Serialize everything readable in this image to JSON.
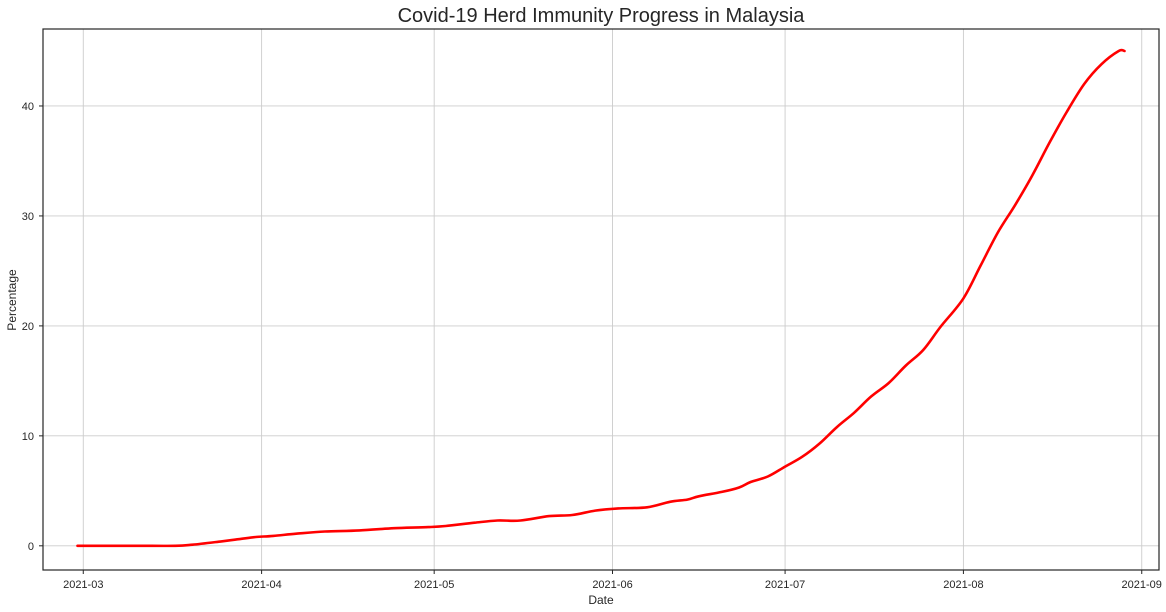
{
  "chart_data": {
    "type": "line",
    "title": "Covid-19 Herd Immunity Progress in Malaysia",
    "xlabel": "Date",
    "ylabel": "Percentage",
    "x_ticks": [
      "2021-03",
      "2021-04",
      "2021-05",
      "2021-06",
      "2021-07",
      "2021-08",
      "2021-09"
    ],
    "y_ticks": [
      "0",
      "10",
      "20",
      "30",
      "40"
    ],
    "xlim": [
      "2021-02-22",
      "2021-09-04"
    ],
    "ylim": [
      -2.2,
      47.0
    ],
    "grid": true,
    "line_color": "#ff0000",
    "x": [
      "2021-02-28",
      "2021-03-10",
      "2021-03-17",
      "2021-03-20",
      "2021-03-25",
      "2021-03-28",
      "2021-03-31",
      "2021-04-03",
      "2021-04-07",
      "2021-04-12",
      "2021-04-18",
      "2021-04-24",
      "2021-04-30",
      "2021-05-03",
      "2021-05-08",
      "2021-05-12",
      "2021-05-16",
      "2021-05-21",
      "2021-05-25",
      "2021-05-29",
      "2021-06-02",
      "2021-06-07",
      "2021-06-11",
      "2021-06-14",
      "2021-06-16",
      "2021-06-20",
      "2021-06-23",
      "2021-06-25",
      "2021-06-28",
      "2021-07-01",
      "2021-07-04",
      "2021-07-07",
      "2021-07-10",
      "2021-07-13",
      "2021-07-16",
      "2021-07-19",
      "2021-07-22",
      "2021-07-25",
      "2021-07-28",
      "2021-08-01",
      "2021-08-04",
      "2021-08-07",
      "2021-08-10",
      "2021-08-13",
      "2021-08-16",
      "2021-08-19",
      "2021-08-22",
      "2021-08-25",
      "2021-08-28",
      "2021-08-29"
    ],
    "y": [
      0.0,
      0.0,
      0.0,
      0.1,
      0.4,
      0.6,
      0.8,
      0.9,
      1.1,
      1.3,
      1.4,
      1.6,
      1.7,
      1.8,
      2.1,
      2.3,
      2.3,
      2.7,
      2.8,
      3.2,
      3.4,
      3.5,
      4.0,
      4.2,
      4.5,
      4.9,
      5.3,
      5.8,
      6.3,
      7.2,
      8.1,
      9.3,
      10.8,
      12.1,
      13.6,
      14.8,
      16.4,
      17.8,
      19.9,
      22.5,
      25.5,
      28.5,
      31.0,
      33.7,
      36.7,
      39.5,
      42.0,
      43.8,
      45.0,
      45.0
    ]
  }
}
